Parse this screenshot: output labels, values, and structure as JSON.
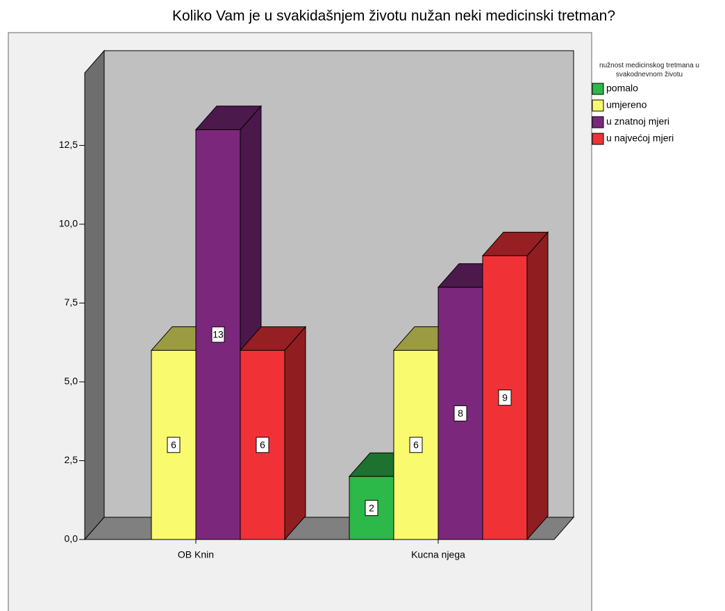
{
  "chart_data": {
    "type": "bar3d",
    "title": "Koliko Vam je u svakidašnjem životu nužan neki medicinski tretman?",
    "legend_title": "nužnost medicinskog tretmana u svakodnevnom životu",
    "categories": [
      "OB Knin",
      "Kucna njega"
    ],
    "series": [
      {
        "name": "pomalo",
        "color": "#2db84a",
        "values": [
          null,
          2
        ]
      },
      {
        "name": "umjereno",
        "color": "#fafa6e",
        "values": [
          6,
          6
        ]
      },
      {
        "name": "u znatnoj mjeri",
        "color": "#7b287c",
        "values": [
          13,
          8
        ]
      },
      {
        "name": "u najvećoj mjeri",
        "color": "#f03237",
        "values": [
          6,
          9
        ]
      }
    ],
    "ylim": [
      0,
      14.8
    ],
    "yticks": [
      {
        "value": 0,
        "label": "0,0"
      },
      {
        "value": 2.5,
        "label": "2,5"
      },
      {
        "value": 5,
        "label": "5,0"
      },
      {
        "value": 7.5,
        "label": "7,5"
      },
      {
        "value": 10,
        "label": "10,0"
      },
      {
        "value": 12.5,
        "label": "12,5"
      }
    ],
    "legend_position": "right"
  }
}
